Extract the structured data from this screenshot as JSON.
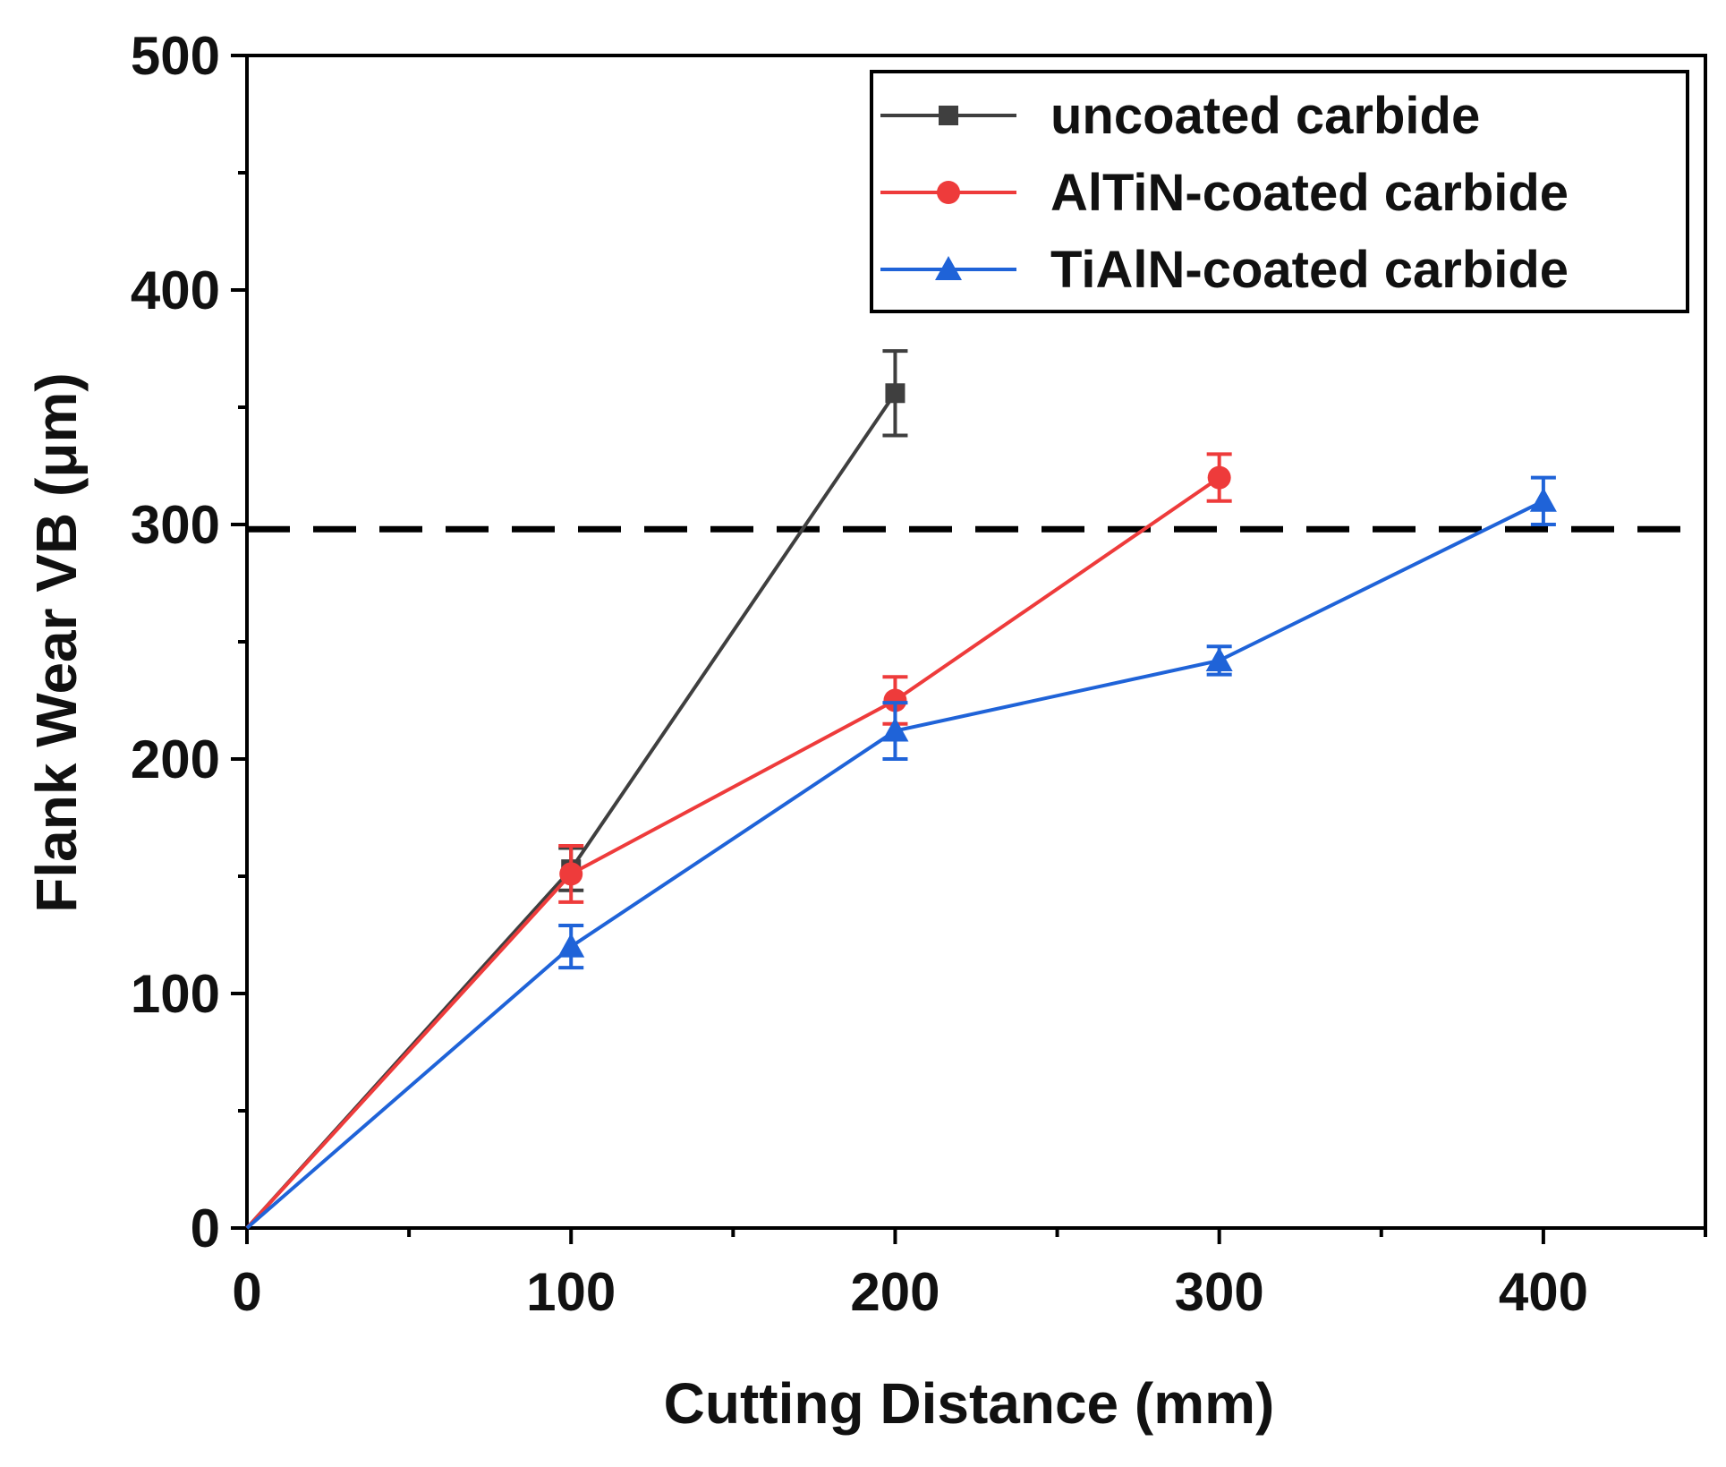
{
  "chart_data": {
    "type": "line",
    "title": "",
    "xlabel": "Cutting Distance (mm)",
    "ylabel": "Flank Wear VB (μm)",
    "xlim": [
      0,
      450
    ],
    "ylim": [
      0,
      500
    ],
    "xticks": [
      0,
      100,
      200,
      300,
      400
    ],
    "yticks": [
      0,
      100,
      200,
      300,
      400,
      500
    ],
    "xticks_minor": [
      50,
      150,
      250,
      350,
      450
    ],
    "yticks_minor": [
      50,
      150,
      250,
      350,
      450
    ],
    "grid": false,
    "legend_position": "top-right",
    "reference_line": {
      "y": 298,
      "style": "dashed",
      "color": "#000000"
    },
    "series": [
      {
        "name": "uncoated carbide",
        "color": "#3f3f3f",
        "marker": "square",
        "x": [
          0,
          100,
          200
        ],
        "y": [
          0,
          153,
          356
        ],
        "error": [
          0,
          9,
          18
        ]
      },
      {
        "name": "AlTiN-coated carbide",
        "color": "#ee3b3b",
        "marker": "circle",
        "x": [
          0,
          100,
          200,
          300
        ],
        "y": [
          0,
          151,
          225,
          320
        ],
        "error": [
          0,
          12,
          10,
          10
        ]
      },
      {
        "name": "TiAlN-coated carbide",
        "color": "#1f63d8",
        "marker": "triangle",
        "x": [
          0,
          100,
          200,
          300,
          400
        ],
        "y": [
          0,
          120,
          212,
          242,
          310
        ],
        "error": [
          0,
          9,
          12,
          6,
          10
        ]
      }
    ]
  }
}
